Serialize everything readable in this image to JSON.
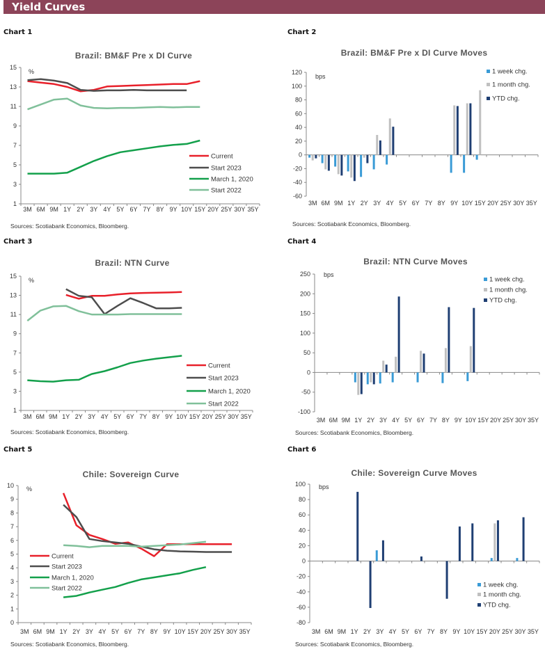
{
  "header": {
    "title": "Yield Curves"
  },
  "chart_labels": [
    "Chart 1",
    "Chart 2",
    "Chart 3",
    "Chart 4",
    "Chart 5",
    "Chart 6"
  ],
  "colors": {
    "Current": "#e8202a",
    "Start 2023": "#4d4d4d",
    "March 1, 2020": "#13a04b",
    "Start 2022": "#80c09a",
    "1 week chg.": "#3a9bd6",
    "1 month chg.": "#c0c0c0",
    "YTD chg.": "#1f3f73",
    "header": "#8c4459"
  },
  "chart_data": [
    {
      "type": "line",
      "title": "Brazil: BM&F  Pre x DI Curve",
      "ylabel": "%",
      "ylim": [
        1,
        15
      ],
      "yticks": [
        1,
        3,
        5,
        7,
        9,
        11,
        13,
        15
      ],
      "categories": [
        "3M",
        "6M",
        "9M",
        "1Y",
        "2Y",
        "3Y",
        "4Y",
        "5Y",
        "6Y",
        "7Y",
        "8Y",
        "9Y",
        "10Y",
        "15Y",
        "20Y",
        "25Y",
        "30Y",
        "35Y"
      ],
      "legend_position": "bottom-right",
      "series": [
        {
          "name": "Current",
          "values": [
            13.6,
            13.45,
            13.3,
            13.0,
            12.55,
            12.7,
            13.05,
            13.1,
            13.15,
            13.2,
            13.25,
            13.3,
            13.3,
            13.6,
            null,
            null,
            null,
            null
          ]
        },
        {
          "name": "Start 2023",
          "values": [
            13.7,
            13.8,
            13.65,
            13.4,
            12.7,
            12.6,
            12.65,
            12.65,
            12.7,
            12.65,
            12.65,
            12.65,
            12.65,
            null,
            null,
            null,
            null,
            null
          ]
        },
        {
          "name": "March 1, 2020",
          "values": [
            4.1,
            4.1,
            4.1,
            4.2,
            4.8,
            5.4,
            5.9,
            6.3,
            6.5,
            6.7,
            6.9,
            7.05,
            7.15,
            7.5,
            null,
            null,
            null,
            null
          ]
        },
        {
          "name": "Start 2022",
          "values": [
            10.7,
            11.2,
            11.7,
            11.8,
            11.1,
            10.85,
            10.8,
            10.85,
            10.85,
            10.9,
            10.95,
            10.9,
            10.95,
            10.95,
            null,
            null,
            null,
            null
          ]
        }
      ],
      "source": "Sources: Scotiabank Economics, Bloomberg."
    },
    {
      "type": "bar",
      "title": "Brazil: BM&F  Pre x DI Curve Moves",
      "ylabel": "bps",
      "ylim": [
        -60,
        120
      ],
      "yticks": [
        -60,
        -40,
        -20,
        0,
        20,
        40,
        60,
        80,
        100,
        120
      ],
      "categories": [
        "3M",
        "6M",
        "9M",
        "1Y",
        "2Y",
        "3Y",
        "4Y",
        "5Y",
        "6Y",
        "7Y",
        "8Y",
        "9Y",
        "10Y",
        "15Y",
        "20Y",
        "25Y",
        "30Y",
        "35Y"
      ],
      "legend_position": "top-right",
      "series": [
        {
          "name": "1 week chg.",
          "values": [
            -4,
            -12,
            -17,
            -24,
            -32,
            -21,
            -14,
            null,
            null,
            null,
            null,
            -26,
            -26,
            -7,
            null,
            null,
            null,
            null
          ]
        },
        {
          "name": "1 month chg.",
          "values": [
            -8,
            -21,
            -28,
            -33,
            -4,
            29,
            53,
            null,
            null,
            null,
            null,
            72,
            75,
            94,
            null,
            null,
            null,
            null
          ]
        },
        {
          "name": "YTD chg.",
          "values": [
            -5,
            -23,
            -30,
            -38,
            -12,
            21,
            41,
            null,
            null,
            null,
            null,
            71,
            75,
            null,
            null,
            null,
            null,
            null
          ]
        }
      ],
      "source": "Sources: Scotiabank Economics, Bloomberg."
    },
    {
      "type": "line",
      "title": "Brazil: NTN Curve",
      "ylabel": "%",
      "ylim": [
        1,
        15
      ],
      "yticks": [
        1,
        3,
        5,
        7,
        9,
        11,
        13,
        15
      ],
      "categories": [
        "3M",
        "6M",
        "9M",
        "1Y",
        "2Y",
        "3Y",
        "4Y",
        "5Y",
        "6Y",
        "7Y",
        "8Y",
        "9Y",
        "10Y",
        "15Y",
        "20Y",
        "25Y",
        "30Y",
        "35Y"
      ],
      "legend_position": "bottom-right",
      "series": [
        {
          "name": "Current",
          "values": [
            null,
            null,
            null,
            13.05,
            12.65,
            12.95,
            12.95,
            13.1,
            13.2,
            13.25,
            13.28,
            13.3,
            13.35,
            null,
            null,
            null,
            null,
            null
          ]
        },
        {
          "name": "Start 2023",
          "values": [
            null,
            null,
            null,
            13.65,
            12.95,
            12.8,
            11.05,
            11.9,
            12.7,
            12.2,
            11.65,
            11.65,
            11.7,
            null,
            null,
            null,
            null,
            null
          ]
        },
        {
          "name": "March 1, 2020",
          "values": [
            4.15,
            4.05,
            4.0,
            4.15,
            4.2,
            4.8,
            5.1,
            5.5,
            5.95,
            6.2,
            6.4,
            6.55,
            6.7,
            null,
            null,
            null,
            null,
            null
          ]
        },
        {
          "name": "Start 2022",
          "values": [
            10.35,
            11.4,
            11.85,
            11.9,
            11.35,
            11.0,
            11.0,
            11.0,
            11.05,
            11.05,
            11.05,
            11.05,
            11.05,
            null,
            null,
            null,
            null,
            null
          ]
        }
      ],
      "source": "Sources: Scotiabank Economics, Bloomberg."
    },
    {
      "type": "bar",
      "title": "Brazil: NTN Curve Moves",
      "ylabel": "bps",
      "ylim": [
        -100,
        250
      ],
      "yticks": [
        -100,
        -50,
        0,
        50,
        100,
        150,
        200,
        250
      ],
      "categories": [
        "3M",
        "6M",
        "9M",
        "1Y",
        "2Y",
        "3Y",
        "4Y",
        "5Y",
        "6Y",
        "7Y",
        "8Y",
        "9Y",
        "10Y",
        "15Y",
        "20Y",
        "25Y",
        "30Y",
        "35Y"
      ],
      "legend_position": "top-right",
      "series": [
        {
          "name": "1 week chg.",
          "values": [
            null,
            null,
            null,
            -25,
            -30,
            -28,
            -25,
            null,
            -25,
            null,
            -27,
            null,
            -22,
            null,
            null,
            null,
            null,
            null
          ]
        },
        {
          "name": "1 month chg.",
          "values": [
            null,
            null,
            null,
            -57,
            -25,
            30,
            40,
            null,
            55,
            null,
            62,
            null,
            67,
            null,
            null,
            null,
            null,
            null
          ]
        },
        {
          "name": "YTD chg.",
          "values": [
            null,
            null,
            null,
            -55,
            -30,
            20,
            193,
            null,
            48,
            null,
            166,
            null,
            164,
            null,
            null,
            null,
            null,
            null
          ]
        }
      ],
      "source": "Sources: Scotiabank Economics, Bloomberg."
    },
    {
      "type": "line",
      "title": "Chile:  Sovereign Curve",
      "ylabel": "%",
      "ylim": [
        0,
        10
      ],
      "yticks": [
        0,
        1,
        2,
        3,
        4,
        5,
        6,
        7,
        8,
        9,
        10
      ],
      "categories": [
        "3M",
        "6M",
        "9M",
        "1Y",
        "2Y",
        "3Y",
        "4Y",
        "5Y",
        "6Y",
        "7Y",
        "8Y",
        "9Y",
        "10Y",
        "15Y",
        "20Y",
        "25Y",
        "30Y",
        "35Y"
      ],
      "legend_position": "middle-left",
      "series": [
        {
          "name": "Current",
          "values": [
            null,
            null,
            null,
            9.45,
            7.1,
            6.4,
            6.1,
            5.75,
            5.85,
            5.4,
            4.85,
            5.72,
            5.72,
            5.72,
            5.72,
            5.72,
            5.72,
            null
          ]
        },
        {
          "name": "Start 2023",
          "values": [
            null,
            null,
            null,
            8.6,
            7.7,
            6.1,
            5.95,
            5.85,
            5.75,
            5.55,
            5.35,
            5.25,
            5.2,
            5.18,
            5.15,
            5.15,
            5.15,
            null
          ]
        },
        {
          "name": "March 1, 2020",
          "values": [
            null,
            null,
            null,
            1.85,
            1.95,
            2.2,
            2.4,
            2.6,
            2.9,
            3.15,
            3.3,
            3.45,
            3.6,
            3.85,
            4.05,
            null,
            null,
            null
          ]
        },
        {
          "name": "Start 2022",
          "values": [
            null,
            null,
            null,
            5.65,
            5.6,
            5.5,
            5.6,
            5.6,
            5.6,
            5.55,
            5.6,
            5.65,
            5.7,
            5.8,
            5.9,
            null,
            null,
            null
          ]
        }
      ],
      "source": "Sources: Scotiabank Economics, Bloomberg."
    },
    {
      "type": "bar",
      "title": "Chile:  Sovereign Curve Moves",
      "ylabel": "bps",
      "ylim": [
        -80,
        100
      ],
      "yticks": [
        -80,
        -60,
        -40,
        -20,
        0,
        20,
        40,
        60,
        80,
        100
      ],
      "categories": [
        "3M",
        "6M",
        "9M",
        "1Y",
        "2Y",
        "3Y",
        "4Y",
        "5Y",
        "6Y",
        "7Y",
        "8Y",
        "9Y",
        "10Y",
        "15Y",
        "20Y",
        "25Y",
        "30Y",
        "35Y"
      ],
      "legend_position": "bottom-right",
      "series": [
        {
          "name": "1 week chg.",
          "values": [
            null,
            null,
            null,
            null,
            null,
            14,
            null,
            null,
            null,
            null,
            null,
            null,
            null,
            null,
            4,
            null,
            4,
            null
          ]
        },
        {
          "name": "1 month chg.",
          "values": [
            null,
            null,
            null,
            null,
            null,
            null,
            null,
            null,
            null,
            null,
            null,
            null,
            null,
            null,
            49,
            null,
            null,
            null
          ]
        },
        {
          "name": "YTD chg.",
          "values": [
            null,
            null,
            null,
            90,
            -61,
            27,
            null,
            null,
            6,
            null,
            -49,
            45,
            49,
            null,
            53,
            null,
            57,
            null
          ]
        }
      ],
      "source": "Sources: Scotiabank Economics, Bloomberg."
    }
  ]
}
